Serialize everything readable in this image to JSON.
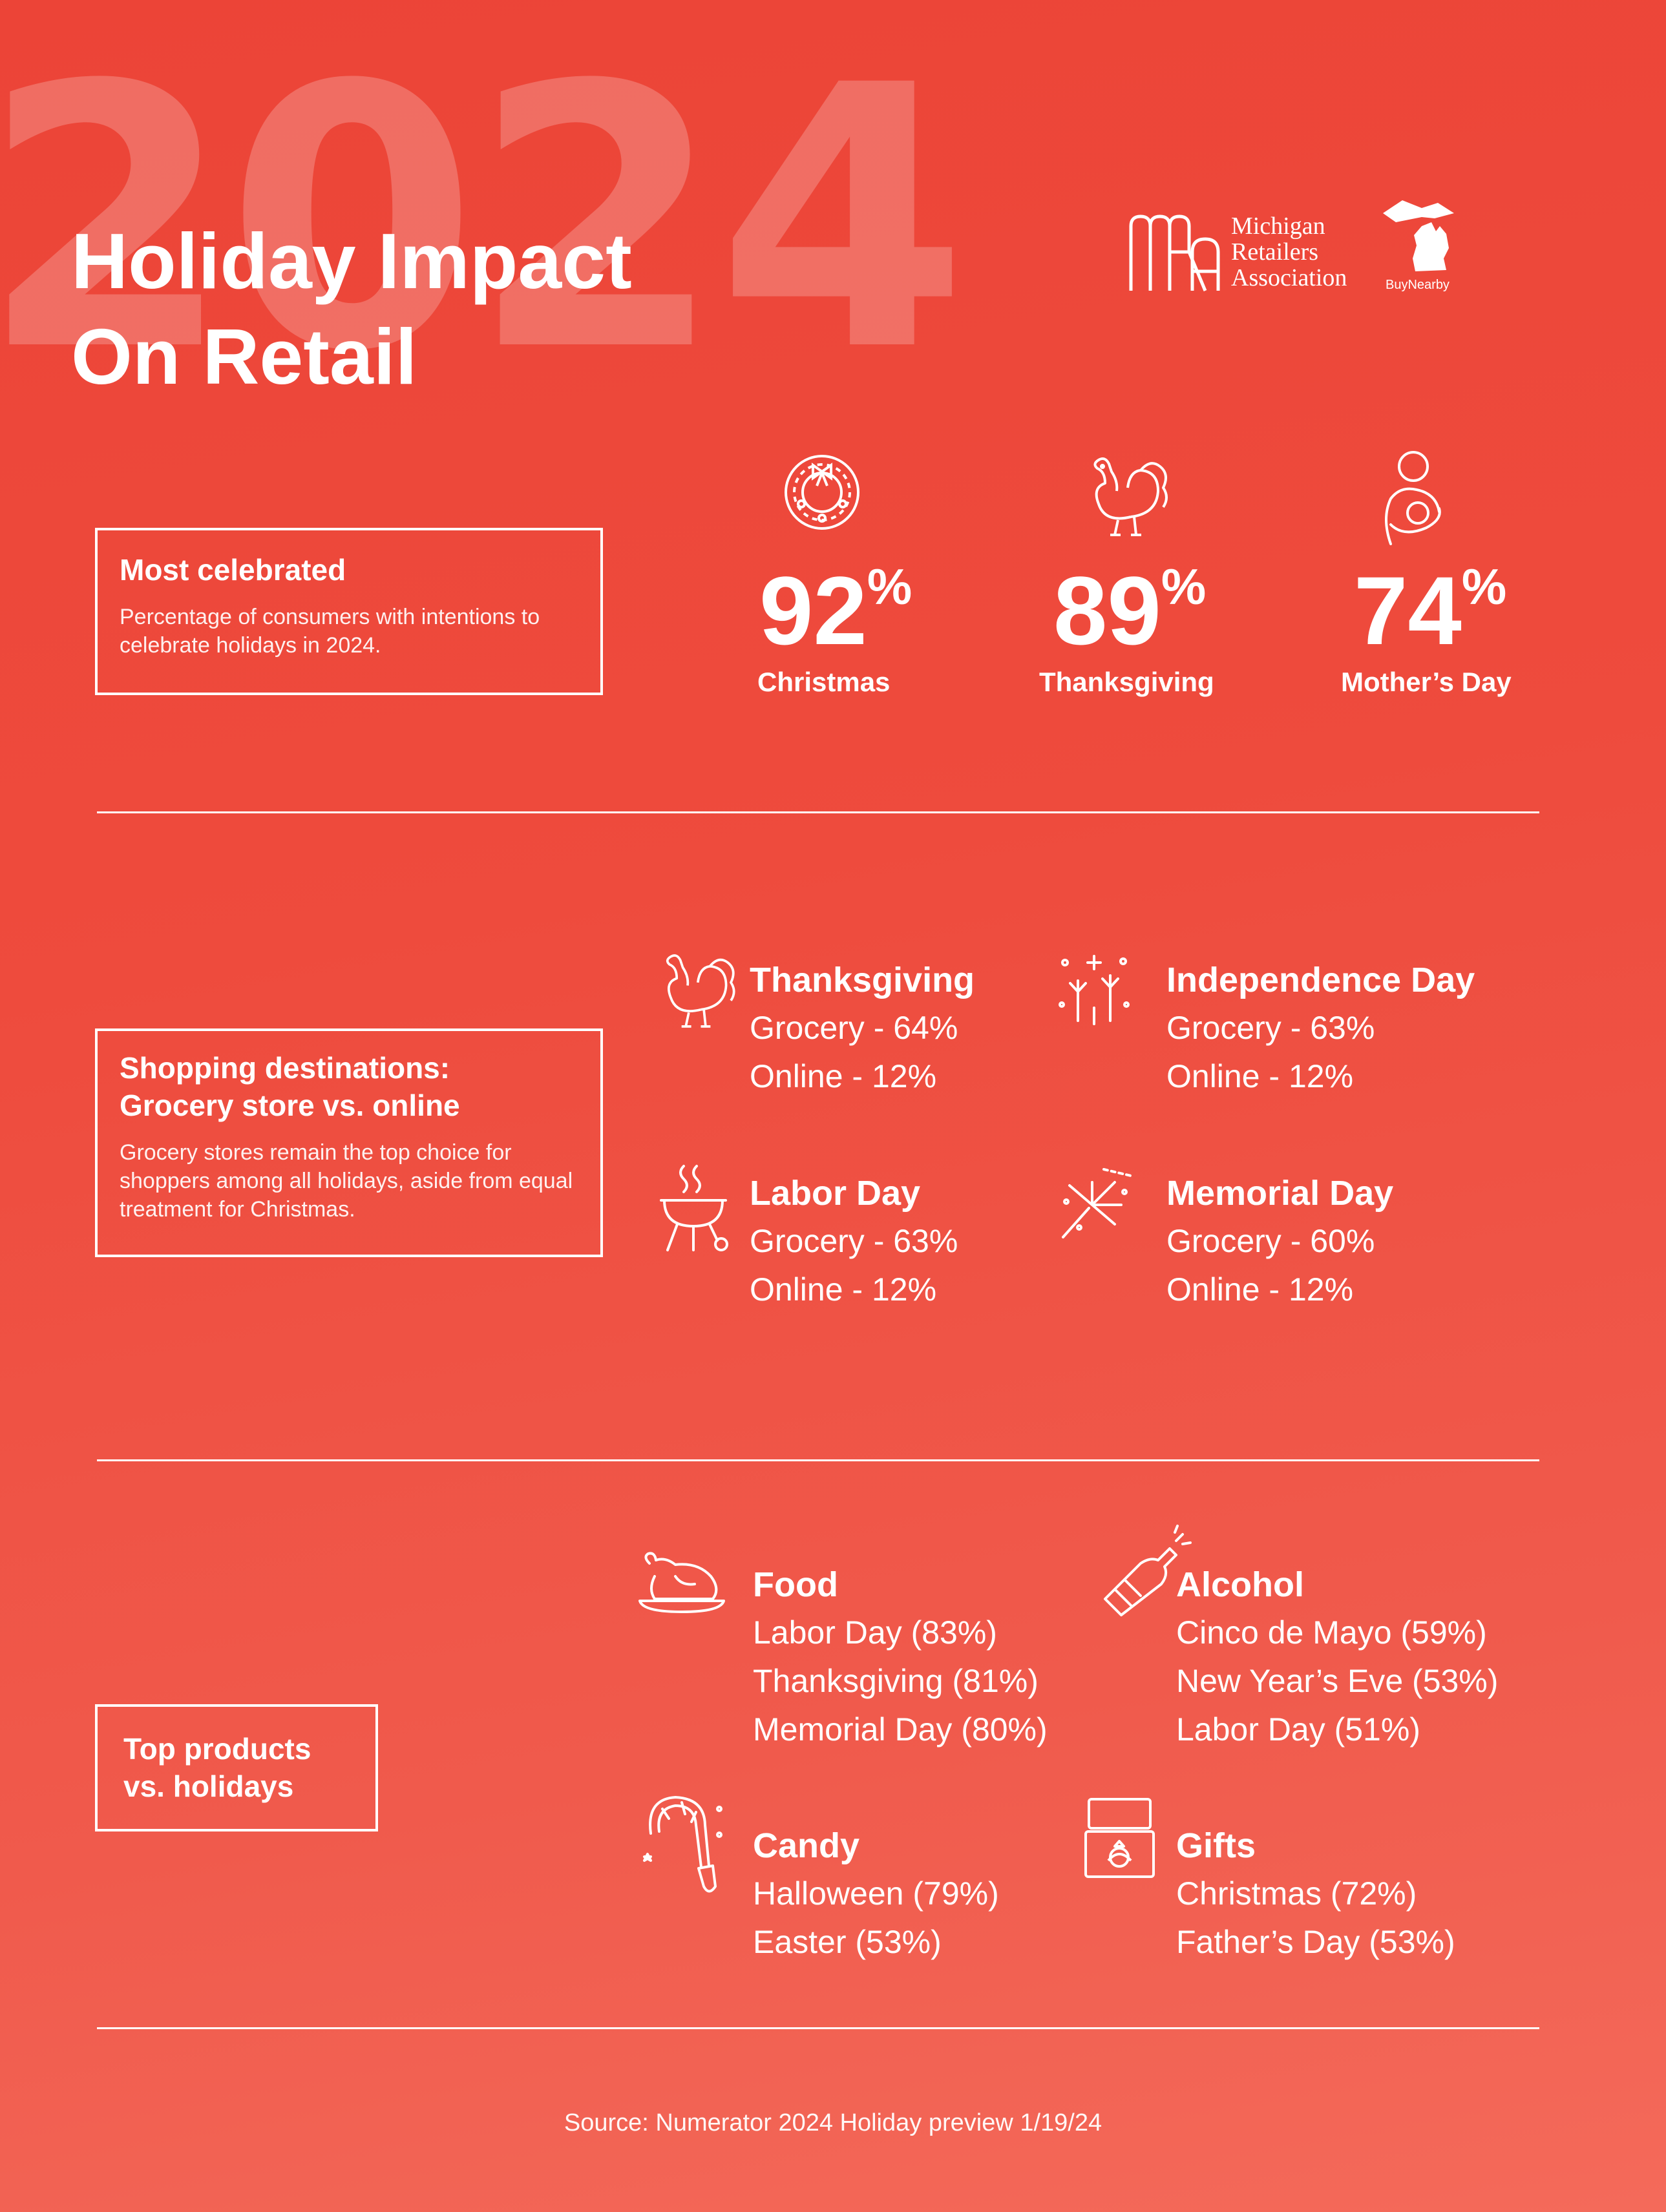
{
  "header": {
    "background_year": "2024",
    "title_line1": "Holiday Impact",
    "title_line2": "On Retail"
  },
  "logos": {
    "mra_line1": "Michigan",
    "mra_line2": "Retailers",
    "mra_line3": "Association",
    "buy_nearby": "BuyNearby"
  },
  "most_celebrated": {
    "heading": "Most celebrated",
    "description": "Percentage of consumers with intentions to celebrate holidays in 2024.",
    "stats": [
      {
        "value": "92",
        "unit": "%",
        "label": "Christmas",
        "icon": "wreath-icon"
      },
      {
        "value": "89",
        "unit": "%",
        "label": "Thanksgiving",
        "icon": "turkey-icon"
      },
      {
        "value": "74",
        "unit": "%",
        "label": "Mother’s Day",
        "icon": "mother-child-icon"
      }
    ]
  },
  "shopping_destinations": {
    "heading_line1": "Shopping destinations:",
    "heading_line2": "Grocery store vs. online",
    "description": "Grocery stores remain the top choice for shoppers among all holidays, aside from equal treatment for Christmas.",
    "groups": [
      {
        "title": "Thanksgiving",
        "lines": [
          "Grocery - 64%",
          "Online - 12%"
        ],
        "icon": "turkey-icon"
      },
      {
        "title": "Independence Day",
        "lines": [
          "Grocery - 63%",
          "Online - 12%"
        ],
        "icon": "fireworks-icon"
      },
      {
        "title": "Labor Day",
        "lines": [
          "Grocery - 63%",
          "Online - 12%"
        ],
        "icon": "grill-icon"
      },
      {
        "title": "Memorial Day",
        "lines": [
          "Grocery - 60%",
          "Online - 12%"
        ],
        "icon": "firework-burst-icon"
      }
    ]
  },
  "top_products": {
    "heading_line1": "Top products",
    "heading_line2": "vs. holidays",
    "groups": [
      {
        "title": "Food",
        "lines": [
          "Labor Day (83%)",
          "Thanksgiving (81%)",
          "Memorial Day (80%)"
        ],
        "icon": "roast-turkey-icon"
      },
      {
        "title": "Alcohol",
        "lines": [
          "Cinco de Mayo (59%)",
          "New Year’s Eve (53%)",
          "Labor Day (51%)"
        ],
        "icon": "champagne-bottle-icon"
      },
      {
        "title": "Candy",
        "lines": [
          "Halloween (79%)",
          "Easter (53%)"
        ],
        "icon": "candy-cane-icon"
      },
      {
        "title": "Gifts",
        "lines": [
          "Christmas (72%)",
          "Father’s Day (53%)"
        ],
        "icon": "ring-box-icon"
      }
    ]
  },
  "footer": {
    "source": "Source: Numerator 2024 Holiday preview 1/19/24"
  },
  "colors": {
    "background": "#ec4437",
    "foreground": "#ffffff"
  }
}
